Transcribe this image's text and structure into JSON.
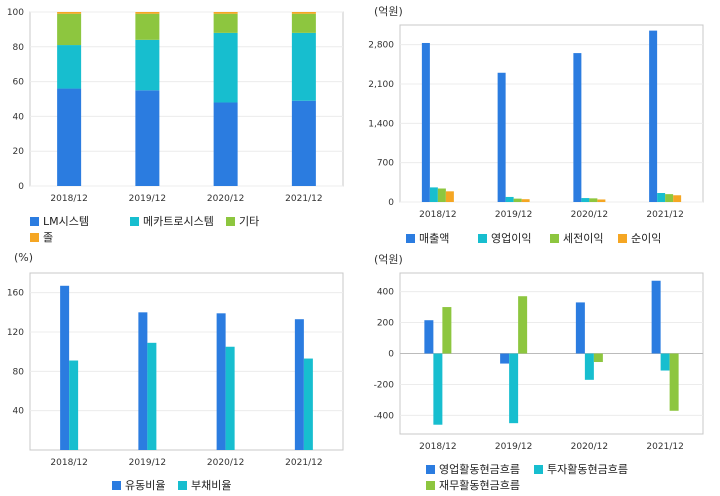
{
  "chart_data": [
    {
      "type": "bar",
      "stacked": true,
      "unit": "",
      "categories": [
        "2018/12",
        "2019/12",
        "2020/12",
        "2021/12"
      ],
      "series": [
        {
          "name": "LM시스템",
          "color": "#2b7ce0",
          "values": [
            56,
            55,
            48,
            49
          ]
        },
        {
          "name": "메카트로시스템",
          "color": "#17becf",
          "values": [
            25,
            29,
            40,
            39
          ]
        },
        {
          "name": "기타",
          "color": "#8dc63f",
          "values": [
            18,
            15,
            11,
            11
          ]
        },
        {
          "name": "졸",
          "color": "#f5a623",
          "values": [
            1,
            1,
            1,
            1
          ]
        }
      ],
      "yticks": [
        0,
        20,
        40,
        60,
        80,
        100
      ],
      "ylim": [
        0,
        100
      ],
      "grid": true
    },
    {
      "type": "bar",
      "unit": "(억원)",
      "categories": [
        "2018/12",
        "2019/12",
        "2020/12",
        "2021/12"
      ],
      "series": [
        {
          "name": "매출액",
          "color": "#2b7ce0",
          "values": [
            2830,
            2300,
            2650,
            3050
          ]
        },
        {
          "name": "영업이익",
          "color": "#17becf",
          "values": [
            260,
            90,
            70,
            160
          ]
        },
        {
          "name": "세전이익",
          "color": "#8dc63f",
          "values": [
            240,
            60,
            65,
            140
          ]
        },
        {
          "name": "순이익",
          "color": "#f5a623",
          "values": [
            190,
            50,
            45,
            120
          ]
        }
      ],
      "yticks": [
        0,
        700,
        1400,
        2100,
        2800
      ],
      "ytick_labels": [
        "0",
        "700",
        "1,400",
        "2,100",
        "2,800"
      ],
      "ylim": [
        0,
        3150
      ],
      "grid": true
    },
    {
      "type": "bar",
      "unit": "(%)",
      "categories": [
        "2018/12",
        "2019/12",
        "2020/12",
        "2021/12"
      ],
      "series": [
        {
          "name": "유동비율",
          "color": "#2b7ce0",
          "values": [
            167,
            140,
            139,
            133
          ]
        },
        {
          "name": "부채비율",
          "color": "#17becf",
          "values": [
            91,
            109,
            105,
            93
          ]
        }
      ],
      "yticks": [
        40,
        80,
        120,
        160
      ],
      "ylim": [
        0,
        180
      ],
      "grid": true
    },
    {
      "type": "bar",
      "unit": "(억원)",
      "categories": [
        "2018/12",
        "2019/12",
        "2020/12",
        "2021/12"
      ],
      "series": [
        {
          "name": "영업활동현금흐름",
          "color": "#2b7ce0",
          "values": [
            215,
            -65,
            330,
            470
          ]
        },
        {
          "name": "투자활동현금흐름",
          "color": "#17becf",
          "values": [
            -460,
            -450,
            -170,
            -110
          ]
        },
        {
          "name": "재무활동현금흐름",
          "color": "#8dc63f",
          "values": [
            300,
            370,
            -55,
            -370
          ]
        }
      ],
      "yticks": [
        -400,
        -200,
        0,
        200,
        400
      ],
      "ylim": [
        -520,
        520
      ],
      "grid": true
    }
  ]
}
